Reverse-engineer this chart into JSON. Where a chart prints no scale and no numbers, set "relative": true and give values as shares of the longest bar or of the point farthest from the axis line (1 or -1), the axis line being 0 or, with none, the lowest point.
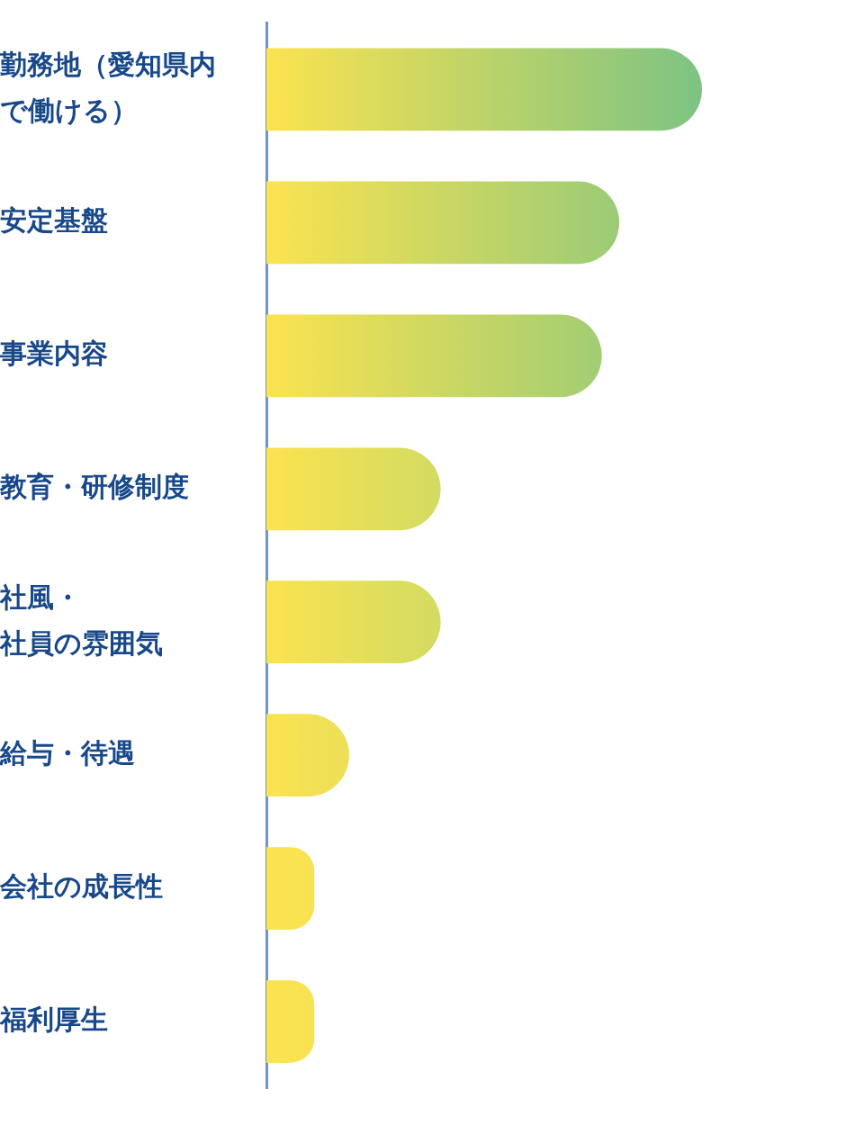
{
  "chart_data": {
    "type": "bar",
    "orientation": "horizontal",
    "relative": true,
    "categories": [
      "勤務地（愛知県内で働ける）",
      "安定基盤",
      "事業内容",
      "教育・研修制度",
      "社風・社員の雰囲気",
      "給与・待遇",
      "会社の成長性",
      "福利厚生"
    ],
    "values": [
      1,
      0.81,
      0.77,
      0.4,
      0.4,
      0.19,
      0.11,
      0.11
    ],
    "colors": [
      "#7dc383",
      "#9bcb77",
      "#a2cd74",
      "#d2db62",
      "#d2db62",
      "#ecdf58",
      "#f8e251",
      "#f8e251"
    ],
    "grid": false,
    "legend": false
  }
}
